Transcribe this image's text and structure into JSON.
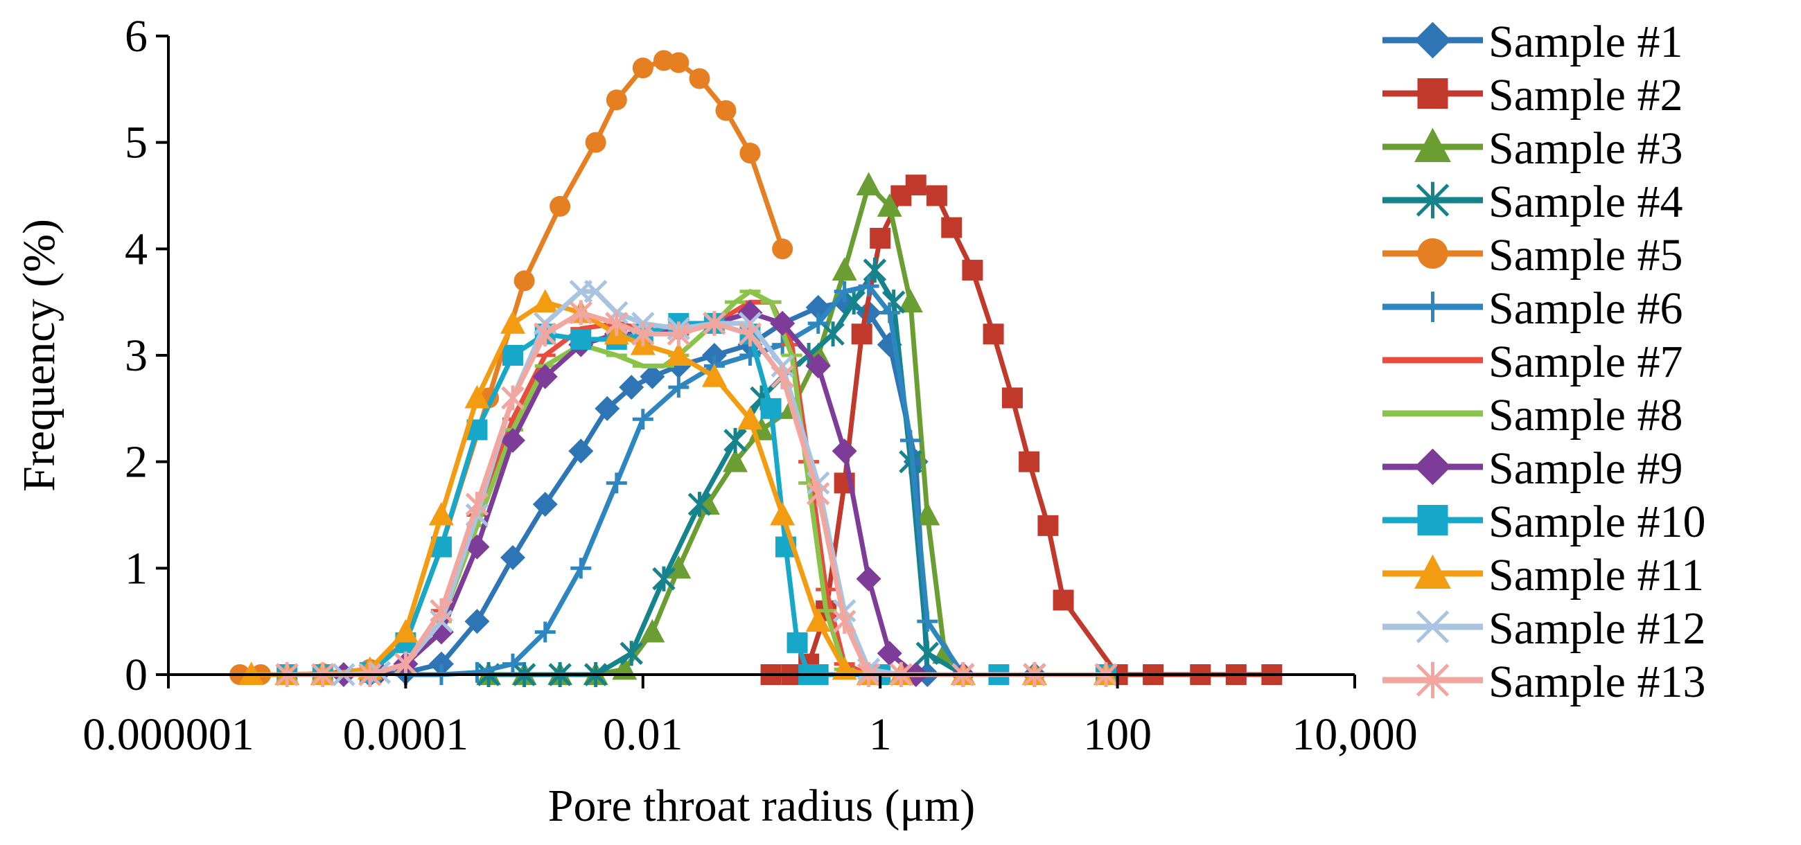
{
  "chart_data": {
    "type": "line",
    "title": "",
    "xlabel": "Pore throat radius (μm)",
    "ylabel": "Frequency (%)",
    "x_scale": "log",
    "xlim": [
      1e-06,
      10000
    ],
    "ylim": [
      0,
      6
    ],
    "x_ticks": [
      {
        "value": 1e-06,
        "label": "0.000001"
      },
      {
        "value": 0.0001,
        "label": "0.0001"
      },
      {
        "value": 0.01,
        "label": "0.01"
      },
      {
        "value": 1,
        "label": "1"
      },
      {
        "value": 100,
        "label": "100"
      },
      {
        "value": 10000,
        "label": "10,000"
      }
    ],
    "y_ticks": [
      0,
      1,
      2,
      3,
      4,
      5,
      6
    ],
    "grid": false,
    "legend_position": "right",
    "series": [
      {
        "name": "Sample #1",
        "color": "#2E75B6",
        "marker": "diamond",
        "x": [
          2e-05,
          5e-05,
          0.0001,
          0.0002,
          0.0004,
          0.0008,
          0.0015,
          0.003,
          0.005,
          0.008,
          0.012,
          0.02,
          0.04,
          0.08,
          0.15,
          0.3,
          0.5,
          0.8,
          1.2,
          2,
          2.5,
          5,
          20,
          80
        ],
        "y": [
          0,
          0,
          0.02,
          0.1,
          0.5,
          1.1,
          1.6,
          2.1,
          2.5,
          2.7,
          2.8,
          2.9,
          3.0,
          3.1,
          3.3,
          3.45,
          3.5,
          3.4,
          3.1,
          2.0,
          0,
          0,
          0,
          0
        ]
      },
      {
        "name": "Sample #2",
        "color": "#C0392B",
        "marker": "square",
        "x": [
          0.12,
          0.18,
          0.25,
          0.35,
          0.5,
          0.7,
          1,
          1.5,
          2,
          3,
          4,
          6,
          9,
          13,
          18,
          26,
          35,
          100,
          200,
          500,
          1000,
          2000
        ],
        "y": [
          0,
          0,
          0.1,
          0.6,
          1.8,
          3.2,
          4.1,
          4.5,
          4.6,
          4.5,
          4.2,
          3.8,
          3.2,
          2.6,
          2.0,
          1.4,
          0.7,
          0,
          0,
          0,
          0,
          0
        ]
      },
      {
        "name": "Sample #3",
        "color": "#6A9E32",
        "marker": "triangle",
        "x": [
          0.0005,
          0.001,
          0.002,
          0.004,
          0.007,
          0.012,
          0.02,
          0.035,
          0.06,
          0.1,
          0.18,
          0.3,
          0.5,
          0.8,
          1.2,
          1.8,
          2.5,
          3.5,
          5,
          20,
          80
        ],
        "y": [
          0,
          0,
          0,
          0,
          0.05,
          0.4,
          1.0,
          1.6,
          2.0,
          2.3,
          2.5,
          3.0,
          3.8,
          4.6,
          4.4,
          3.5,
          1.5,
          0.2,
          0,
          0,
          0
        ]
      },
      {
        "name": "Sample #4",
        "color": "#14838C",
        "marker": "star",
        "x": [
          0.0005,
          0.001,
          0.002,
          0.004,
          0.008,
          0.015,
          0.03,
          0.06,
          0.1,
          0.15,
          0.25,
          0.4,
          0.6,
          0.9,
          1.3,
          1.8,
          2.5,
          5,
          20
        ],
        "y": [
          0,
          0,
          0,
          0,
          0.2,
          0.9,
          1.6,
          2.2,
          2.6,
          2.8,
          3.0,
          3.2,
          3.5,
          3.8,
          3.5,
          2.0,
          0.2,
          0,
          0
        ]
      },
      {
        "name": "Sample #5",
        "color": "#E67E22",
        "marker": "circle",
        "x": [
          4e-06,
          6e-06,
          1e-05,
          2e-05,
          5e-05,
          0.0001,
          0.0002,
          0.0005,
          0.001,
          0.002,
          0.004,
          0.006,
          0.01,
          0.015,
          0.02,
          0.03,
          0.05,
          0.08,
          0.15
        ],
        "y": [
          0,
          0,
          0,
          0.01,
          0.05,
          0.3,
          1.2,
          2.6,
          3.7,
          4.4,
          5.0,
          5.4,
          5.7,
          5.77,
          5.75,
          5.6,
          5.3,
          4.9,
          4.0
        ]
      },
      {
        "name": "Sample #6",
        "color": "#2E86C1",
        "marker": "plus",
        "x": [
          0.0001,
          0.0002,
          0.0004,
          0.0008,
          0.0015,
          0.003,
          0.006,
          0.01,
          0.02,
          0.04,
          0.08,
          0.15,
          0.3,
          0.5,
          0.8,
          1.2,
          1.8,
          2.5,
          5,
          20
        ],
        "y": [
          0,
          0,
          0.02,
          0.1,
          0.4,
          1.0,
          1.8,
          2.4,
          2.7,
          2.9,
          3.0,
          3.1,
          3.3,
          3.6,
          3.65,
          3.4,
          2.2,
          0.5,
          0,
          0
        ]
      },
      {
        "name": "Sample #7",
        "color": "#E74C3C",
        "marker": "dash",
        "x": [
          3e-05,
          6e-05,
          0.0001,
          0.0002,
          0.0004,
          0.0008,
          0.0015,
          0.003,
          0.006,
          0.01,
          0.02,
          0.04,
          0.08,
          0.12,
          0.18,
          0.25,
          0.35,
          0.5,
          0.8,
          1.5,
          5
        ],
        "y": [
          0,
          0.02,
          0.1,
          0.6,
          1.5,
          2.4,
          3.0,
          3.25,
          3.3,
          3.25,
          3.2,
          3.3,
          3.5,
          3.5,
          3.1,
          2.0,
          0.8,
          0.1,
          0,
          0,
          0
        ]
      },
      {
        "name": "Sample #8",
        "color": "#8BC34A",
        "marker": "dash",
        "x": [
          3e-05,
          6e-05,
          0.0001,
          0.0002,
          0.0004,
          0.0008,
          0.0015,
          0.003,
          0.006,
          0.01,
          0.015,
          0.02,
          0.04,
          0.06,
          0.08,
          0.12,
          0.18,
          0.25,
          0.35,
          0.5,
          0.8,
          1.5
        ],
        "y": [
          0,
          0.02,
          0.1,
          0.5,
          1.4,
          2.3,
          2.9,
          3.1,
          3.0,
          2.9,
          2.9,
          3.0,
          3.3,
          3.5,
          3.6,
          3.5,
          3.0,
          1.8,
          0.6,
          0.05,
          0,
          0
        ]
      },
      {
        "name": "Sample #9",
        "color": "#7D3C98",
        "marker": "diamond",
        "x": [
          3e-05,
          6e-05,
          0.0001,
          0.0002,
          0.0004,
          0.0008,
          0.0015,
          0.003,
          0.006,
          0.01,
          0.02,
          0.04,
          0.08,
          0.15,
          0.3,
          0.5,
          0.8,
          1.2,
          2,
          5
        ],
        "y": [
          0,
          0.02,
          0.1,
          0.4,
          1.2,
          2.2,
          2.8,
          3.1,
          3.2,
          3.2,
          3.25,
          3.3,
          3.4,
          3.3,
          2.9,
          2.1,
          0.9,
          0.2,
          0,
          0
        ]
      },
      {
        "name": "Sample #10",
        "color": "#17A8C9",
        "marker": "square",
        "x": [
          1e-05,
          2e-05,
          5e-05,
          0.0001,
          0.0002,
          0.0004,
          0.0008,
          0.0015,
          0.003,
          0.006,
          0.01,
          0.02,
          0.04,
          0.08,
          0.12,
          0.16,
          0.2,
          0.25,
          0.3,
          1,
          10,
          80
        ],
        "y": [
          0,
          0,
          0.02,
          0.3,
          1.2,
          2.3,
          3.0,
          3.2,
          3.15,
          3.15,
          3.2,
          3.3,
          3.3,
          3.2,
          2.5,
          1.2,
          0.3,
          0,
          0,
          0,
          0,
          0
        ]
      },
      {
        "name": "Sample #11",
        "color": "#F39C12",
        "marker": "triangle",
        "x": [
          5e-06,
          1e-05,
          2e-05,
          5e-05,
          0.0001,
          0.0002,
          0.0004,
          0.0008,
          0.0015,
          0.003,
          0.006,
          0.01,
          0.02,
          0.04,
          0.08,
          0.15,
          0.3,
          0.5,
          0.8,
          1.5,
          5,
          20,
          80
        ],
        "y": [
          0,
          0,
          0,
          0.05,
          0.4,
          1.5,
          2.6,
          3.3,
          3.5,
          3.4,
          3.2,
          3.1,
          3.0,
          2.8,
          2.4,
          1.5,
          0.5,
          0.05,
          0,
          0,
          0,
          0,
          0
        ]
      },
      {
        "name": "Sample #12",
        "color": "#A9C4E0",
        "marker": "x",
        "x": [
          3e-05,
          6e-05,
          0.0001,
          0.0002,
          0.0004,
          0.0008,
          0.0015,
          0.003,
          0.004,
          0.006,
          0.01,
          0.02,
          0.04,
          0.08,
          0.15,
          0.3,
          0.5,
          0.8,
          1.5,
          5
        ],
        "y": [
          0,
          0.02,
          0.1,
          0.5,
          1.5,
          2.6,
          3.3,
          3.6,
          3.6,
          3.4,
          3.3,
          3.25,
          3.3,
          3.3,
          2.9,
          1.8,
          0.6,
          0.05,
          0,
          0
        ]
      },
      {
        "name": "Sample #13",
        "color": "#F1A7A0",
        "marker": "star",
        "x": [
          1e-05,
          2e-05,
          5e-05,
          0.0001,
          0.0002,
          0.0004,
          0.0008,
          0.0015,
          0.003,
          0.006,
          0.01,
          0.02,
          0.04,
          0.08,
          0.15,
          0.3,
          0.5,
          0.8,
          1.5,
          5,
          20,
          80
        ],
        "y": [
          0,
          0,
          0,
          0.1,
          0.6,
          1.6,
          2.6,
          3.2,
          3.4,
          3.3,
          3.2,
          3.2,
          3.3,
          3.2,
          2.8,
          1.7,
          0.5,
          0,
          0,
          0,
          0,
          0
        ]
      }
    ]
  }
}
